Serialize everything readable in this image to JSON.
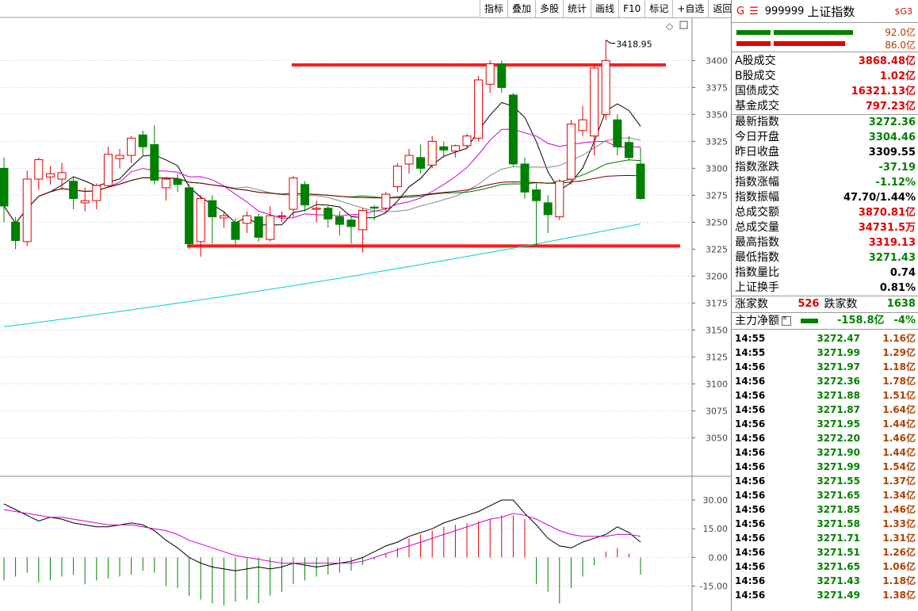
{
  "toolbar": {
    "buttons": [
      "指标",
      "叠加",
      "多股",
      "统计",
      "画线",
      "F10",
      "标记",
      "+自选",
      "返回"
    ]
  },
  "header": {
    "g_label": "G",
    "e_label": "☰",
    "code": "999999",
    "name": "上证指数",
    "sg_label": "$G3"
  },
  "flow_bars": [
    {
      "value": "92.0亿",
      "color": "#008000"
    },
    {
      "value": "86.0亿",
      "color": "#e00000"
    }
  ],
  "stats": [
    {
      "label": "A股成交",
      "value": "3868.48亿",
      "color": "red"
    },
    {
      "label": "B股成交",
      "value": "1.02亿",
      "color": "red"
    },
    {
      "label": "国债成交",
      "value": "16321.13亿",
      "color": "red"
    },
    {
      "label": "基金成交",
      "value": "797.23亿",
      "color": "red"
    },
    {
      "label": "最新指数",
      "value": "3272.36",
      "color": "green"
    },
    {
      "label": "今日开盘",
      "value": "3304.46",
      "color": "green"
    },
    {
      "label": "昨日收盘",
      "value": "3309.55",
      "color": "blk"
    },
    {
      "label": "指数涨跌",
      "value": "-37.19",
      "color": "green"
    },
    {
      "label": "指数涨幅",
      "value": "-1.12%",
      "color": "green"
    },
    {
      "label": "指数振幅",
      "value": "47.70/1.44%",
      "color": "blk"
    },
    {
      "label": "总成交额",
      "value": "3870.81亿",
      "color": "red"
    },
    {
      "label": "总成交量",
      "value": "34731.5万",
      "color": "red"
    },
    {
      "label": "最高指数",
      "value": "3319.13",
      "color": "red"
    },
    {
      "label": "最低指数",
      "value": "3271.43",
      "color": "green"
    },
    {
      "label": "指数量比",
      "value": "0.74",
      "color": "blk"
    },
    {
      "label": "上证换手",
      "value": "0.81%",
      "color": "blk"
    }
  ],
  "updown": {
    "up_label": "涨家数",
    "up_value": "526",
    "down_label": "跌家数",
    "down_value": "1638"
  },
  "main_force": {
    "label": "主力净额",
    "icon": "list-icon",
    "value": "-158.8亿",
    "pct": "-4%"
  },
  "ticks": [
    {
      "time": "14:55",
      "price": "3272.47",
      "amount": "1.16亿"
    },
    {
      "time": "14:55",
      "price": "3271.99",
      "amount": "1.29亿"
    },
    {
      "time": "14:56",
      "price": "3271.97",
      "amount": "1.18亿"
    },
    {
      "time": "14:56",
      "price": "3272.36",
      "amount": "1.78亿"
    },
    {
      "time": "14:56",
      "price": "3271.88",
      "amount": "1.51亿"
    },
    {
      "time": "14:56",
      "price": "3271.87",
      "amount": "1.64亿"
    },
    {
      "time": "14:56",
      "price": "3271.95",
      "amount": "1.44亿"
    },
    {
      "time": "14:56",
      "price": "3272.20",
      "amount": "1.46亿"
    },
    {
      "time": "14:56",
      "price": "3271.90",
      "amount": "1.44亿"
    },
    {
      "time": "14:56",
      "price": "3271.99",
      "amount": "1.54亿"
    },
    {
      "time": "14:56",
      "price": "3271.55",
      "amount": "1.37亿"
    },
    {
      "time": "14:56",
      "price": "3271.65",
      "amount": "1.34亿"
    },
    {
      "time": "14:56",
      "price": "3271.85",
      "amount": "1.46亿"
    },
    {
      "time": "14:56",
      "price": "3271.58",
      "amount": "1.33亿"
    },
    {
      "time": "14:56",
      "price": "3271.71",
      "amount": "1.31亿"
    },
    {
      "time": "14:56",
      "price": "3271.51",
      "amount": "1.26亿"
    },
    {
      "time": "14:56",
      "price": "3271.65",
      "amount": "1.06亿"
    },
    {
      "time": "14:56",
      "price": "3271.43",
      "amount": "1.18亿"
    },
    {
      "time": "14:56",
      "price": "3271.49",
      "amount": "1.38亿"
    }
  ],
  "chart_data": {
    "type": "candlestick",
    "price_axis": {
      "ticks": [
        3050,
        3075,
        3100,
        3125,
        3150,
        3175,
        3200,
        3225,
        3250,
        3275,
        3300,
        3325,
        3350,
        3375,
        3400
      ],
      "range": [
        3015,
        3440
      ]
    },
    "high_annotation": "3418.95",
    "support_line": 3228,
    "resistance_line": 3396,
    "candles": [
      {
        "o": 3300,
        "c": 3265,
        "h": 3310,
        "l": 3250
      },
      {
        "o": 3250,
        "c": 3233,
        "h": 3255,
        "l": 3225
      },
      {
        "o": 3232,
        "c": 3290,
        "h": 3298,
        "l": 3228
      },
      {
        "o": 3290,
        "c": 3308,
        "h": 3310,
        "l": 3280
      },
      {
        "o": 3292,
        "c": 3295,
        "h": 3302,
        "l": 3285
      },
      {
        "o": 3290,
        "c": 3296,
        "h": 3305,
        "l": 3280
      },
      {
        "o": 3288,
        "c": 3272,
        "h": 3292,
        "l": 3262
      },
      {
        "o": 3268,
        "c": 3270,
        "h": 3282,
        "l": 3260
      },
      {
        "o": 3270,
        "c": 3284,
        "h": 3286,
        "l": 3262
      },
      {
        "o": 3284,
        "c": 3313,
        "h": 3320,
        "l": 3282
      },
      {
        "o": 3309,
        "c": 3312,
        "h": 3318,
        "l": 3300
      },
      {
        "o": 3312,
        "c": 3328,
        "h": 3330,
        "l": 3305
      },
      {
        "o": 3331,
        "c": 3320,
        "h": 3335,
        "l": 3312
      },
      {
        "o": 3322,
        "c": 3289,
        "h": 3340,
        "l": 3285
      },
      {
        "o": 3282,
        "c": 3290,
        "h": 3292,
        "l": 3270
      },
      {
        "o": 3290,
        "c": 3285,
        "h": 3295,
        "l": 3278
      },
      {
        "o": 3282,
        "c": 3230,
        "h": 3285,
        "l": 3225
      },
      {
        "o": 3232,
        "c": 3272,
        "h": 3275,
        "l": 3218
      },
      {
        "o": 3270,
        "c": 3255,
        "h": 3275,
        "l": 3230
      },
      {
        "o": 3254,
        "c": 3256,
        "h": 3260,
        "l": 3245
      },
      {
        "o": 3250,
        "c": 3234,
        "h": 3254,
        "l": 3228
      },
      {
        "o": 3249,
        "c": 3256,
        "h": 3260,
        "l": 3240
      },
      {
        "o": 3255,
        "c": 3236,
        "h": 3258,
        "l": 3232
      },
      {
        "o": 3234,
        "c": 3256,
        "h": 3265,
        "l": 3232
      },
      {
        "o": 3256,
        "c": 3256,
        "h": 3260,
        "l": 3250
      },
      {
        "o": 3262,
        "c": 3291,
        "h": 3293,
        "l": 3255
      },
      {
        "o": 3285,
        "c": 3266,
        "h": 3288,
        "l": 3260
      },
      {
        "o": 3262,
        "c": 3263,
        "h": 3270,
        "l": 3250
      },
      {
        "o": 3263,
        "c": 3253,
        "h": 3265,
        "l": 3245
      },
      {
        "o": 3255,
        "c": 3248,
        "h": 3260,
        "l": 3238
      },
      {
        "o": 3252,
        "c": 3246,
        "h": 3256,
        "l": 3230
      },
      {
        "o": 3243,
        "c": 3261,
        "h": 3263,
        "l": 3222
      },
      {
        "o": 3264,
        "c": 3263,
        "h": 3266,
        "l": 3252
      },
      {
        "o": 3263,
        "c": 3276,
        "h": 3278,
        "l": 3258
      },
      {
        "o": 3283,
        "c": 3302,
        "h": 3305,
        "l": 3278
      },
      {
        "o": 3304,
        "c": 3312,
        "h": 3318,
        "l": 3295
      },
      {
        "o": 3310,
        "c": 3300,
        "h": 3322,
        "l": 3295
      },
      {
        "o": 3303,
        "c": 3325,
        "h": 3330,
        "l": 3300
      },
      {
        "o": 3320,
        "c": 3317,
        "h": 3325,
        "l": 3310
      },
      {
        "o": 3316,
        "c": 3321,
        "h": 3322,
        "l": 3310
      },
      {
        "o": 3321,
        "c": 3330,
        "h": 3332,
        "l": 3318
      },
      {
        "o": 3328,
        "c": 3382,
        "h": 3386,
        "l": 3325
      },
      {
        "o": 3378,
        "c": 3397,
        "h": 3400,
        "l": 3370
      },
      {
        "o": 3397,
        "c": 3375,
        "h": 3400,
        "l": 3370
      },
      {
        "o": 3368,
        "c": 3304,
        "h": 3370,
        "l": 3302
      },
      {
        "o": 3304,
        "c": 3278,
        "h": 3310,
        "l": 3272
      },
      {
        "o": 3280,
        "c": 3270,
        "h": 3286,
        "l": 3228
      },
      {
        "o": 3268,
        "c": 3257,
        "h": 3275,
        "l": 3240
      },
      {
        "o": 3255,
        "c": 3288,
        "h": 3290,
        "l": 3252
      },
      {
        "o": 3290,
        "c": 3341,
        "h": 3345,
        "l": 3285
      },
      {
        "o": 3335,
        "c": 3345,
        "h": 3358,
        "l": 3330
      },
      {
        "o": 3330,
        "c": 3393,
        "h": 3396,
        "l": 3312
      },
      {
        "o": 3350,
        "c": 3400,
        "h": 3419,
        "l": 3345
      },
      {
        "o": 3345,
        "c": 3320,
        "h": 3350,
        "l": 3312
      },
      {
        "o": 3324,
        "c": 3310,
        "h": 3330,
        "l": 3308
      },
      {
        "o": 3304,
        "c": 3272,
        "h": 3319,
        "l": 3271
      }
    ],
    "macd_axis": {
      "ticks": [
        -15,
        0,
        15,
        30
      ],
      "range": [
        -28,
        42
      ]
    },
    "macd_hist": [
      -12,
      -10,
      -8,
      -13,
      -12,
      -10,
      -9,
      -14,
      -12,
      -11,
      -10,
      -9,
      -7,
      -8,
      -15,
      -16,
      -20,
      -22,
      -24,
      -25,
      -23,
      -22,
      -24,
      -20,
      -18,
      -14,
      -12,
      -10,
      -9,
      -8,
      -7,
      -4,
      -1,
      2,
      5,
      10,
      12,
      14,
      16,
      17,
      18,
      19,
      20,
      22,
      22,
      20,
      -14,
      -18,
      -24,
      -16,
      -10,
      -4,
      3,
      5,
      2,
      -9
    ],
    "macd_dif": [
      28,
      25,
      22,
      19,
      21,
      20,
      18,
      17,
      16,
      16,
      17,
      18,
      17,
      14,
      9,
      5,
      0,
      -3,
      -5,
      -6,
      -7,
      -6,
      -5,
      -6,
      -5,
      -3,
      -4,
      -5,
      -4,
      -3,
      -2,
      0,
      3,
      6,
      8,
      11,
      13,
      15,
      18,
      20,
      22,
      24,
      27,
      30,
      30,
      23,
      17,
      10,
      6,
      5,
      8,
      10,
      12,
      16,
      13,
      8
    ],
    "macd_dea": [
      25,
      24,
      23,
      22,
      21,
      21,
      20,
      19,
      18,
      17,
      17,
      17,
      16,
      15,
      14,
      12,
      9,
      7,
      5,
      3,
      1,
      0,
      -1,
      -2,
      -3,
      -3,
      -3,
      -3,
      -3,
      -3,
      -3,
      -2,
      0,
      2,
      4,
      6,
      8,
      10,
      12,
      14,
      16,
      18,
      20,
      21,
      23,
      22,
      20,
      17,
      14,
      12,
      11,
      11,
      11,
      12,
      12,
      11
    ]
  }
}
